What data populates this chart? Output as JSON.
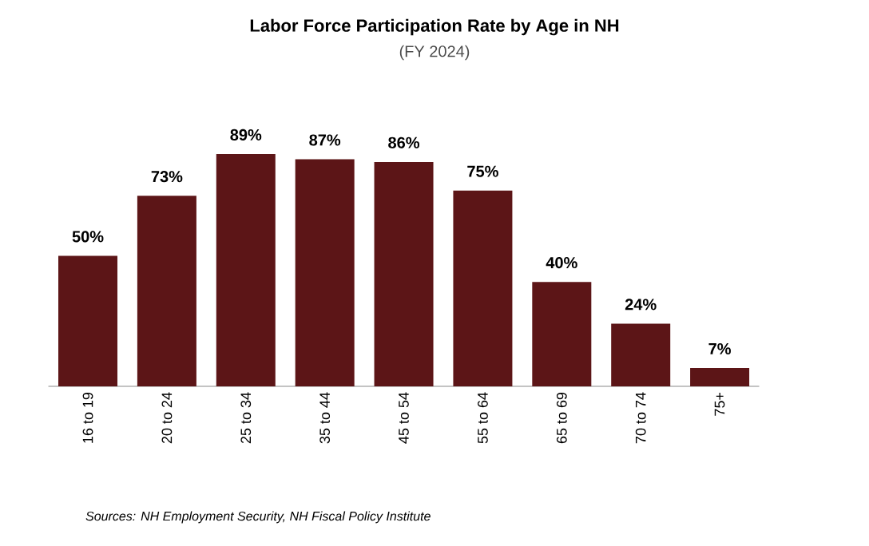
{
  "chart_data": {
    "type": "bar",
    "title": "Labor Force Participation Rate by Age in NH",
    "subtitle": "(FY 2024)",
    "categories": [
      "16 to 19",
      "20 to 24",
      "25 to 34",
      "35 to 44",
      "45 to 54",
      "55 to 64",
      "65 to 69",
      "70 to 74",
      "75+"
    ],
    "values": [
      50,
      73,
      89,
      87,
      86,
      75,
      40,
      24,
      7
    ],
    "value_labels": [
      "50%",
      "73%",
      "89%",
      "87%",
      "86%",
      "75%",
      "40%",
      "24%",
      "7%"
    ],
    "color": "#5c1517",
    "annotations": [
      "Sources: NH Employment Security, NH Fiscal Policy Institute"
    ]
  }
}
